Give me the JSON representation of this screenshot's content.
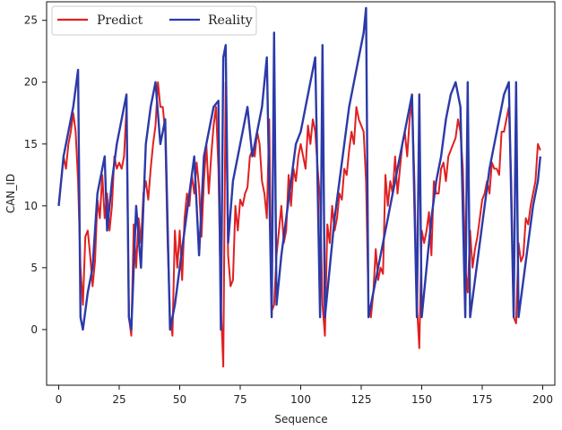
{
  "chart_data": {
    "type": "line",
    "title": "",
    "xlabel": "Sequence",
    "ylabel": "CAN_ID",
    "xlim": [
      -5,
      205
    ],
    "ylim": [
      -4.5,
      26.5
    ],
    "x_ticks": [
      0,
      25,
      50,
      75,
      100,
      125,
      150,
      175,
      200
    ],
    "y_ticks": [
      0,
      5,
      10,
      15,
      20,
      25
    ],
    "legend": {
      "position": "top-left"
    },
    "series": [
      {
        "name": "Predict",
        "color": "#e02020",
        "points": [
          [
            0,
            10
          ],
          [
            1,
            12
          ],
          [
            2,
            14
          ],
          [
            3,
            13
          ],
          [
            4,
            15
          ],
          [
            5,
            16
          ],
          [
            6,
            17.5
          ],
          [
            7,
            16
          ],
          [
            8,
            12
          ],
          [
            9,
            5
          ],
          [
            10,
            2
          ],
          [
            11,
            7.5
          ],
          [
            12,
            8
          ],
          [
            13,
            6
          ],
          [
            14,
            3.5
          ],
          [
            15,
            5.5
          ],
          [
            16,
            10.5
          ],
          [
            17,
            9
          ],
          [
            18,
            12.5
          ],
          [
            19,
            9
          ],
          [
            20,
            11
          ],
          [
            21,
            8
          ],
          [
            22,
            10
          ],
          [
            23,
            14
          ],
          [
            24,
            13
          ],
          [
            25,
            13.5
          ],
          [
            26,
            13
          ],
          [
            27,
            14
          ],
          [
            28,
            18
          ],
          [
            29,
            1
          ],
          [
            30,
            -0.5
          ],
          [
            31,
            8.5
          ],
          [
            32,
            5
          ],
          [
            33,
            9
          ],
          [
            34,
            7
          ],
          [
            35,
            11
          ],
          [
            36,
            12
          ],
          [
            37,
            10.5
          ],
          [
            38,
            13
          ],
          [
            39,
            15
          ],
          [
            40,
            16.5
          ],
          [
            41,
            20
          ],
          [
            42,
            18
          ],
          [
            43,
            18
          ],
          [
            44,
            16
          ],
          [
            45,
            7
          ],
          [
            46,
            1
          ],
          [
            47,
            -0.5
          ],
          [
            48,
            8
          ],
          [
            49,
            5
          ],
          [
            50,
            8
          ],
          [
            51,
            4
          ],
          [
            52,
            9
          ],
          [
            53,
            11
          ],
          [
            54,
            10
          ],
          [
            55,
            12.5
          ],
          [
            56,
            11
          ],
          [
            57,
            13.5
          ],
          [
            58,
            11.5
          ],
          [
            59,
            7.5
          ],
          [
            60,
            12
          ],
          [
            61,
            15
          ],
          [
            62,
            11
          ],
          [
            63,
            14
          ],
          [
            64,
            16.5
          ],
          [
            65,
            18
          ],
          [
            66,
            13
          ],
          [
            67,
            2
          ],
          [
            68,
            -3
          ],
          [
            69,
            20
          ],
          [
            70,
            6
          ],
          [
            71,
            3.5
          ],
          [
            72,
            4
          ],
          [
            73,
            10
          ],
          [
            74,
            8
          ],
          [
            75,
            10.5
          ],
          [
            76,
            10
          ],
          [
            77,
            11
          ],
          [
            78,
            11.5
          ],
          [
            79,
            14
          ],
          [
            80,
            14.5
          ],
          [
            81,
            14
          ],
          [
            82,
            16
          ],
          [
            83,
            15
          ],
          [
            84,
            12
          ],
          [
            85,
            11
          ],
          [
            86,
            9
          ],
          [
            87,
            17
          ],
          [
            88,
            1.5
          ],
          [
            89,
            2
          ],
          [
            90,
            6
          ],
          [
            91,
            8
          ],
          [
            92,
            10
          ],
          [
            93,
            7
          ],
          [
            94,
            8
          ],
          [
            95,
            12.5
          ],
          [
            96,
            10
          ],
          [
            97,
            13
          ],
          [
            98,
            12
          ],
          [
            99,
            14
          ],
          [
            100,
            15
          ],
          [
            101,
            14
          ],
          [
            102,
            13
          ],
          [
            103,
            16.5
          ],
          [
            104,
            15
          ],
          [
            105,
            17
          ],
          [
            106,
            16
          ],
          [
            107,
            13
          ],
          [
            108,
            10.5
          ],
          [
            109,
            2
          ],
          [
            110,
            -0.5
          ],
          [
            111,
            8.5
          ],
          [
            112,
            7
          ],
          [
            113,
            10
          ],
          [
            114,
            8
          ],
          [
            115,
            9
          ],
          [
            116,
            11
          ],
          [
            117,
            10.5
          ],
          [
            118,
            13
          ],
          [
            119,
            12.5
          ],
          [
            120,
            14.5
          ],
          [
            121,
            16
          ],
          [
            122,
            15
          ],
          [
            123,
            18
          ],
          [
            124,
            17
          ],
          [
            125,
            16.5
          ],
          [
            126,
            16
          ],
          [
            127,
            12
          ],
          [
            128,
            2
          ],
          [
            129,
            1
          ],
          [
            130,
            3
          ],
          [
            131,
            6.5
          ],
          [
            132,
            4
          ],
          [
            133,
            5
          ],
          [
            134,
            4.5
          ],
          [
            135,
            12.5
          ],
          [
            136,
            10
          ],
          [
            137,
            12
          ],
          [
            138,
            11
          ],
          [
            139,
            14
          ],
          [
            140,
            11
          ],
          [
            141,
            13
          ],
          [
            142,
            15
          ],
          [
            143,
            16
          ],
          [
            144,
            14
          ],
          [
            145,
            17
          ],
          [
            146,
            18.5
          ],
          [
            147,
            12
          ],
          [
            148,
            2
          ],
          [
            149,
            -1.5
          ],
          [
            150,
            8
          ],
          [
            151,
            7
          ],
          [
            152,
            8
          ],
          [
            153,
            9.5
          ],
          [
            154,
            6
          ],
          [
            155,
            12
          ],
          [
            156,
            11
          ],
          [
            157,
            11
          ],
          [
            158,
            13
          ],
          [
            159,
            13.5
          ],
          [
            160,
            12
          ],
          [
            161,
            14
          ],
          [
            162,
            14.5
          ],
          [
            163,
            15
          ],
          [
            164,
            15.5
          ],
          [
            165,
            17
          ],
          [
            166,
            16
          ],
          [
            167,
            13
          ],
          [
            168,
            5
          ],
          [
            169,
            3
          ],
          [
            170,
            8
          ],
          [
            171,
            5
          ],
          [
            172,
            6.5
          ],
          [
            173,
            7.5
          ],
          [
            174,
            9
          ],
          [
            175,
            10.5
          ],
          [
            176,
            11
          ],
          [
            177,
            12
          ],
          [
            178,
            11
          ],
          [
            179,
            13.5
          ],
          [
            180,
            13
          ],
          [
            181,
            13
          ],
          [
            182,
            12.5
          ],
          [
            183,
            16
          ],
          [
            184,
            16
          ],
          [
            185,
            17
          ],
          [
            186,
            18
          ],
          [
            187,
            12
          ],
          [
            188,
            1
          ],
          [
            189,
            0.5
          ],
          [
            190,
            7
          ],
          [
            191,
            5.5
          ],
          [
            192,
            6
          ],
          [
            193,
            9
          ],
          [
            194,
            8.5
          ],
          [
            195,
            10
          ],
          [
            196,
            11
          ],
          [
            197,
            12
          ],
          [
            198,
            15
          ],
          [
            199,
            14.5
          ]
        ]
      },
      {
        "name": "Reality",
        "color": "#2b3aa8",
        "points": [
          [
            0,
            10
          ],
          [
            2,
            14
          ],
          [
            4,
            16
          ],
          [
            6,
            18
          ],
          [
            8,
            21
          ],
          [
            9,
            1
          ],
          [
            10,
            0
          ],
          [
            12,
            3
          ],
          [
            14,
            5
          ],
          [
            16,
            11
          ],
          [
            18,
            13
          ],
          [
            19,
            14
          ],
          [
            20,
            8
          ],
          [
            22,
            12
          ],
          [
            24,
            15
          ],
          [
            26,
            17
          ],
          [
            28,
            19
          ],
          [
            29,
            1
          ],
          [
            30,
            0
          ],
          [
            32,
            10
          ],
          [
            34,
            5
          ],
          [
            36,
            15
          ],
          [
            38,
            18
          ],
          [
            40,
            20
          ],
          [
            42,
            15
          ],
          [
            44,
            17
          ],
          [
            46,
            0
          ],
          [
            48,
            2
          ],
          [
            50,
            5
          ],
          [
            52,
            8
          ],
          [
            54,
            11
          ],
          [
            56,
            14
          ],
          [
            58,
            6
          ],
          [
            60,
            14
          ],
          [
            62,
            16
          ],
          [
            64,
            18
          ],
          [
            66,
            18.5
          ],
          [
            67,
            0
          ],
          [
            68,
            22
          ],
          [
            69,
            23
          ],
          [
            70,
            7
          ],
          [
            72,
            12
          ],
          [
            74,
            14
          ],
          [
            76,
            16
          ],
          [
            78,
            18
          ],
          [
            80,
            14
          ],
          [
            82,
            16
          ],
          [
            84,
            18
          ],
          [
            86,
            22
          ],
          [
            88,
            1
          ],
          [
            89,
            24
          ],
          [
            90,
            2
          ],
          [
            92,
            6
          ],
          [
            94,
            9
          ],
          [
            96,
            12
          ],
          [
            98,
            15
          ],
          [
            100,
            16
          ],
          [
            102,
            18
          ],
          [
            104,
            20
          ],
          [
            106,
            22
          ],
          [
            108,
            1
          ],
          [
            109,
            23
          ],
          [
            110,
            1
          ],
          [
            112,
            5
          ],
          [
            114,
            9
          ],
          [
            116,
            12
          ],
          [
            118,
            15
          ],
          [
            120,
            18
          ],
          [
            122,
            20
          ],
          [
            124,
            22
          ],
          [
            126,
            24
          ],
          [
            127,
            26
          ],
          [
            128,
            1
          ],
          [
            130,
            3
          ],
          [
            132,
            5
          ],
          [
            134,
            7
          ],
          [
            136,
            9
          ],
          [
            138,
            11
          ],
          [
            140,
            13
          ],
          [
            142,
            15
          ],
          [
            144,
            17
          ],
          [
            146,
            19
          ],
          [
            148,
            1
          ],
          [
            149,
            19
          ],
          [
            150,
            1
          ],
          [
            152,
            5
          ],
          [
            154,
            9
          ],
          [
            156,
            12
          ],
          [
            158,
            14
          ],
          [
            160,
            17
          ],
          [
            162,
            19
          ],
          [
            164,
            20
          ],
          [
            166,
            18
          ],
          [
            168,
            1
          ],
          [
            169,
            20
          ],
          [
            170,
            1
          ],
          [
            172,
            4
          ],
          [
            174,
            7
          ],
          [
            176,
            10
          ],
          [
            178,
            13
          ],
          [
            180,
            15
          ],
          [
            182,
            17
          ],
          [
            184,
            19
          ],
          [
            186,
            20
          ],
          [
            188,
            1
          ],
          [
            189,
            20
          ],
          [
            190,
            1
          ],
          [
            192,
            4
          ],
          [
            194,
            7
          ],
          [
            196,
            10
          ],
          [
            198,
            12
          ],
          [
            199,
            14
          ]
        ]
      }
    ]
  }
}
